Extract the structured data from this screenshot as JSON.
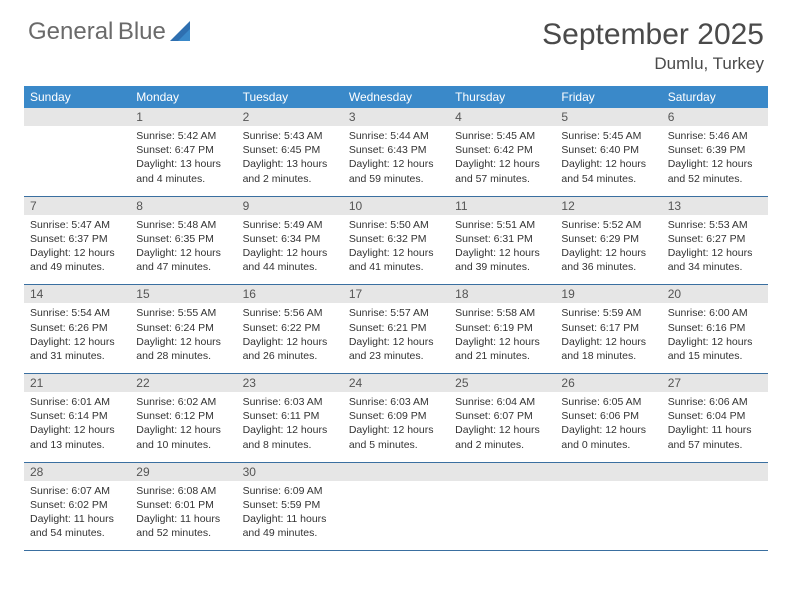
{
  "brand": {
    "name_top": "General",
    "name_bottom": "Blue"
  },
  "header": {
    "title": "September 2025",
    "location": "Dumlu, Turkey"
  },
  "colors": {
    "header_bar": "#3a89c9",
    "header_text": "#ffffff",
    "daynum_bg": "#e6e6e6",
    "rule": "#3a6fa0",
    "text": "#333333",
    "logo_gray": "#6a6a6a",
    "logo_blue": "#3a7ec4"
  },
  "dow": [
    "Sunday",
    "Monday",
    "Tuesday",
    "Wednesday",
    "Thursday",
    "Friday",
    "Saturday"
  ],
  "weeks": [
    {
      "nums": [
        "",
        "1",
        "2",
        "3",
        "4",
        "5",
        "6"
      ],
      "cells": [
        null,
        {
          "sunrise": "5:42 AM",
          "sunset": "6:47 PM",
          "daylight": "13 hours and 4 minutes."
        },
        {
          "sunrise": "5:43 AM",
          "sunset": "6:45 PM",
          "daylight": "13 hours and 2 minutes."
        },
        {
          "sunrise": "5:44 AM",
          "sunset": "6:43 PM",
          "daylight": "12 hours and 59 minutes."
        },
        {
          "sunrise": "5:45 AM",
          "sunset": "6:42 PM",
          "daylight": "12 hours and 57 minutes."
        },
        {
          "sunrise": "5:45 AM",
          "sunset": "6:40 PM",
          "daylight": "12 hours and 54 minutes."
        },
        {
          "sunrise": "5:46 AM",
          "sunset": "6:39 PM",
          "daylight": "12 hours and 52 minutes."
        }
      ]
    },
    {
      "nums": [
        "7",
        "8",
        "9",
        "10",
        "11",
        "12",
        "13"
      ],
      "cells": [
        {
          "sunrise": "5:47 AM",
          "sunset": "6:37 PM",
          "daylight": "12 hours and 49 minutes."
        },
        {
          "sunrise": "5:48 AM",
          "sunset": "6:35 PM",
          "daylight": "12 hours and 47 minutes."
        },
        {
          "sunrise": "5:49 AM",
          "sunset": "6:34 PM",
          "daylight": "12 hours and 44 minutes."
        },
        {
          "sunrise": "5:50 AM",
          "sunset": "6:32 PM",
          "daylight": "12 hours and 41 minutes."
        },
        {
          "sunrise": "5:51 AM",
          "sunset": "6:31 PM",
          "daylight": "12 hours and 39 minutes."
        },
        {
          "sunrise": "5:52 AM",
          "sunset": "6:29 PM",
          "daylight": "12 hours and 36 minutes."
        },
        {
          "sunrise": "5:53 AM",
          "sunset": "6:27 PM",
          "daylight": "12 hours and 34 minutes."
        }
      ]
    },
    {
      "nums": [
        "14",
        "15",
        "16",
        "17",
        "18",
        "19",
        "20"
      ],
      "cells": [
        {
          "sunrise": "5:54 AM",
          "sunset": "6:26 PM",
          "daylight": "12 hours and 31 minutes."
        },
        {
          "sunrise": "5:55 AM",
          "sunset": "6:24 PM",
          "daylight": "12 hours and 28 minutes."
        },
        {
          "sunrise": "5:56 AM",
          "sunset": "6:22 PM",
          "daylight": "12 hours and 26 minutes."
        },
        {
          "sunrise": "5:57 AM",
          "sunset": "6:21 PM",
          "daylight": "12 hours and 23 minutes."
        },
        {
          "sunrise": "5:58 AM",
          "sunset": "6:19 PM",
          "daylight": "12 hours and 21 minutes."
        },
        {
          "sunrise": "5:59 AM",
          "sunset": "6:17 PM",
          "daylight": "12 hours and 18 minutes."
        },
        {
          "sunrise": "6:00 AM",
          "sunset": "6:16 PM",
          "daylight": "12 hours and 15 minutes."
        }
      ]
    },
    {
      "nums": [
        "21",
        "22",
        "23",
        "24",
        "25",
        "26",
        "27"
      ],
      "cells": [
        {
          "sunrise": "6:01 AM",
          "sunset": "6:14 PM",
          "daylight": "12 hours and 13 minutes."
        },
        {
          "sunrise": "6:02 AM",
          "sunset": "6:12 PM",
          "daylight": "12 hours and 10 minutes."
        },
        {
          "sunrise": "6:03 AM",
          "sunset": "6:11 PM",
          "daylight": "12 hours and 8 minutes."
        },
        {
          "sunrise": "6:03 AM",
          "sunset": "6:09 PM",
          "daylight": "12 hours and 5 minutes."
        },
        {
          "sunrise": "6:04 AM",
          "sunset": "6:07 PM",
          "daylight": "12 hours and 2 minutes."
        },
        {
          "sunrise": "6:05 AM",
          "sunset": "6:06 PM",
          "daylight": "12 hours and 0 minutes."
        },
        {
          "sunrise": "6:06 AM",
          "sunset": "6:04 PM",
          "daylight": "11 hours and 57 minutes."
        }
      ]
    },
    {
      "nums": [
        "28",
        "29",
        "30",
        "",
        "",
        "",
        ""
      ],
      "cells": [
        {
          "sunrise": "6:07 AM",
          "sunset": "6:02 PM",
          "daylight": "11 hours and 54 minutes."
        },
        {
          "sunrise": "6:08 AM",
          "sunset": "6:01 PM",
          "daylight": "11 hours and 52 minutes."
        },
        {
          "sunrise": "6:09 AM",
          "sunset": "5:59 PM",
          "daylight": "11 hours and 49 minutes."
        },
        null,
        null,
        null,
        null
      ]
    }
  ],
  "labels": {
    "sunrise": "Sunrise: ",
    "sunset": "Sunset: ",
    "daylight": "Daylight: "
  }
}
